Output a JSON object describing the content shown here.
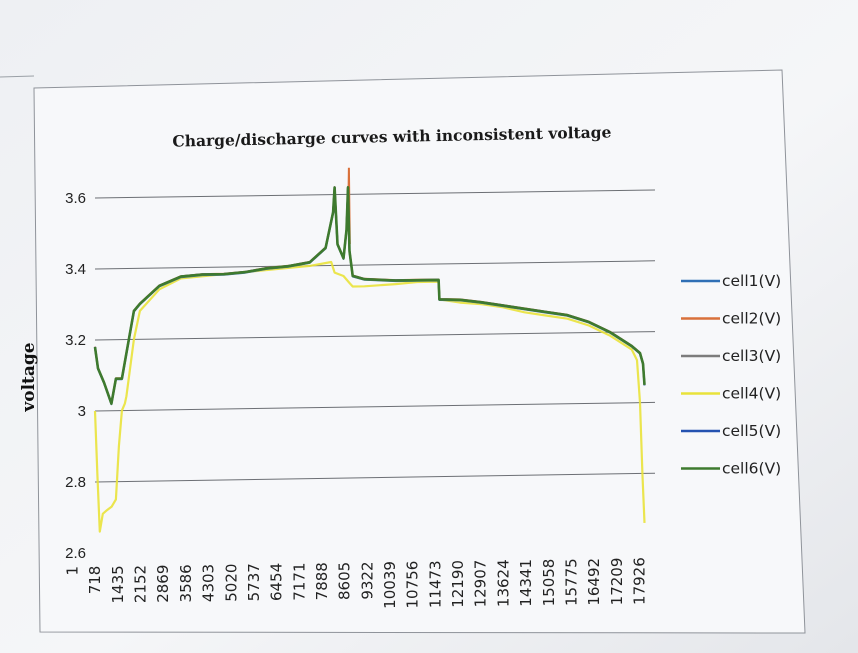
{
  "chart_data": {
    "type": "line",
    "title": "Charge/discharge curves with inconsistent voltage",
    "xlabel": "",
    "ylabel": "voltage",
    "ylim": [
      2.6,
      3.6
    ],
    "yticks": [
      {
        "value": 2.6,
        "label": "2.6"
      },
      {
        "value": 2.8,
        "label": "2.8"
      },
      {
        "value": 3.0,
        "label": "3"
      },
      {
        "value": 3.2,
        "label": "3.2"
      },
      {
        "value": 3.4,
        "label": "3.4"
      },
      {
        "value": 3.6,
        "label": "3.6"
      }
    ],
    "xticks": [
      "1",
      "718",
      "1435",
      "2152",
      "2869",
      "3586",
      "4303",
      "5020",
      "5737",
      "6454",
      "7171",
      "7888",
      "8605",
      "9322",
      "10039",
      "10756",
      "11473",
      "12190",
      "12907",
      "13624",
      "14341",
      "15058",
      "15775",
      "16492",
      "17209",
      "17926"
    ],
    "xlim": [
      1,
      18700
    ],
    "grid": true,
    "legend_position": "right",
    "series": [
      {
        "name": "cell1(V)",
        "color": "#2f6fb5"
      },
      {
        "name": "cell2(V)",
        "color": "#d9703a"
      },
      {
        "name": "cell3(V)",
        "color": "#7c7c7c"
      },
      {
        "name": "cell4(V)",
        "color": "#e9e23a"
      },
      {
        "name": "cell5(V)",
        "color": "#2452b0"
      },
      {
        "name": "cell6(V)",
        "color": "#3e7a2e"
      }
    ],
    "main_curve": {
      "x": [
        1,
        100,
        300,
        550,
        700,
        900,
        1300,
        1500,
        2152,
        2869,
        3586,
        4303,
        5020,
        5737,
        6454,
        7171,
        7700,
        7950,
        8000,
        8100,
        8300,
        8400,
        8450,
        8500,
        8605,
        9000,
        10039,
        10756,
        11473,
        11500,
        12190,
        12907,
        13624,
        14341,
        15058,
        15775,
        16492,
        17209,
        17926,
        18200,
        18300,
        18350
      ],
      "y": [
        3.18,
        3.12,
        3.08,
        3.02,
        3.09,
        3.09,
        3.28,
        3.3,
        3.35,
        3.375,
        3.38,
        3.38,
        3.385,
        3.395,
        3.4,
        3.41,
        3.45,
        3.55,
        3.62,
        3.46,
        3.42,
        3.5,
        3.62,
        3.44,
        3.37,
        3.36,
        3.355,
        3.355,
        3.355,
        3.3,
        3.298,
        3.29,
        3.28,
        3.27,
        3.26,
        3.25,
        3.23,
        3.2,
        3.16,
        3.14,
        3.11,
        3.05
      ]
    },
    "cell2_spike": {
      "x": [
        8450,
        8480,
        8510
      ],
      "y": [
        3.5,
        3.675,
        3.46
      ]
    },
    "cell4_curve": {
      "x": [
        1,
        80,
        160,
        260,
        400,
        560,
        700,
        800,
        900,
        1000,
        1050,
        1300,
        1500,
        2152,
        2869,
        3586,
        4303,
        5020,
        5737,
        6454,
        7171,
        7888,
        8000,
        8300,
        8500,
        8605,
        9000,
        10039,
        10756,
        11473,
        11500,
        12190,
        12907,
        13624,
        14341,
        15058,
        15775,
        16492,
        17209,
        17926,
        18100,
        18200,
        18280,
        18350
      ],
      "y": [
        3.0,
        2.82,
        2.66,
        2.71,
        2.72,
        2.73,
        2.75,
        2.9,
        3.0,
        3.02,
        3.04,
        3.2,
        3.28,
        3.34,
        3.37,
        3.375,
        3.38,
        3.385,
        3.39,
        3.395,
        3.4,
        3.41,
        3.38,
        3.37,
        3.35,
        3.34,
        3.34,
        3.345,
        3.35,
        3.35,
        3.3,
        3.29,
        3.285,
        3.275,
        3.26,
        3.25,
        3.24,
        3.22,
        3.19,
        3.15,
        3.12,
        3.0,
        2.8,
        2.66
      ]
    }
  }
}
